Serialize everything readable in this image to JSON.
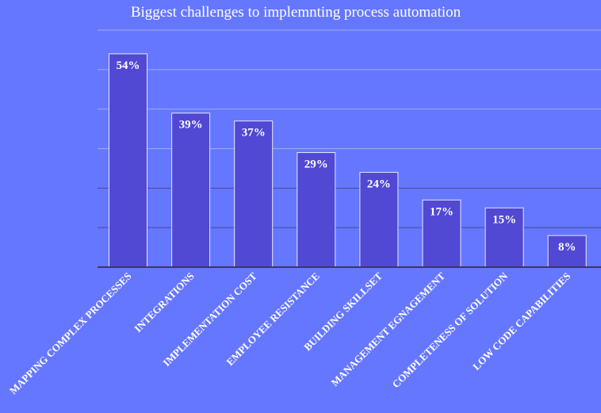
{
  "chart_data": {
    "type": "bar",
    "title": "Biggest challenges to implemnting process automation",
    "categories": [
      "MAPPING COMPLEX PROCESSES",
      "INTEGRATIONS",
      "IMPLEMENTATION COST",
      "EMPLOYEE RESISTANCE",
      "BUILDING SKILLSET",
      "MANAGEMENT EGNAGEMENT",
      "COMPLETENESS OF SOLUTION",
      "LOW CODE CAPABILITIES"
    ],
    "values": [
      54,
      39,
      37,
      29,
      24,
      17,
      15,
      8
    ],
    "value_labels": [
      "54%",
      "39%",
      "37%",
      "29%",
      "24%",
      "17%",
      "15%",
      "8%"
    ],
    "value_unit": "%",
    "ylim": [
      0,
      60
    ],
    "grid": true,
    "legend": "none",
    "colors": {
      "background": "#6577ff",
      "bar": "#5148d3",
      "bar_border": "#e6e6ff",
      "text": "#ffffff"
    }
  }
}
